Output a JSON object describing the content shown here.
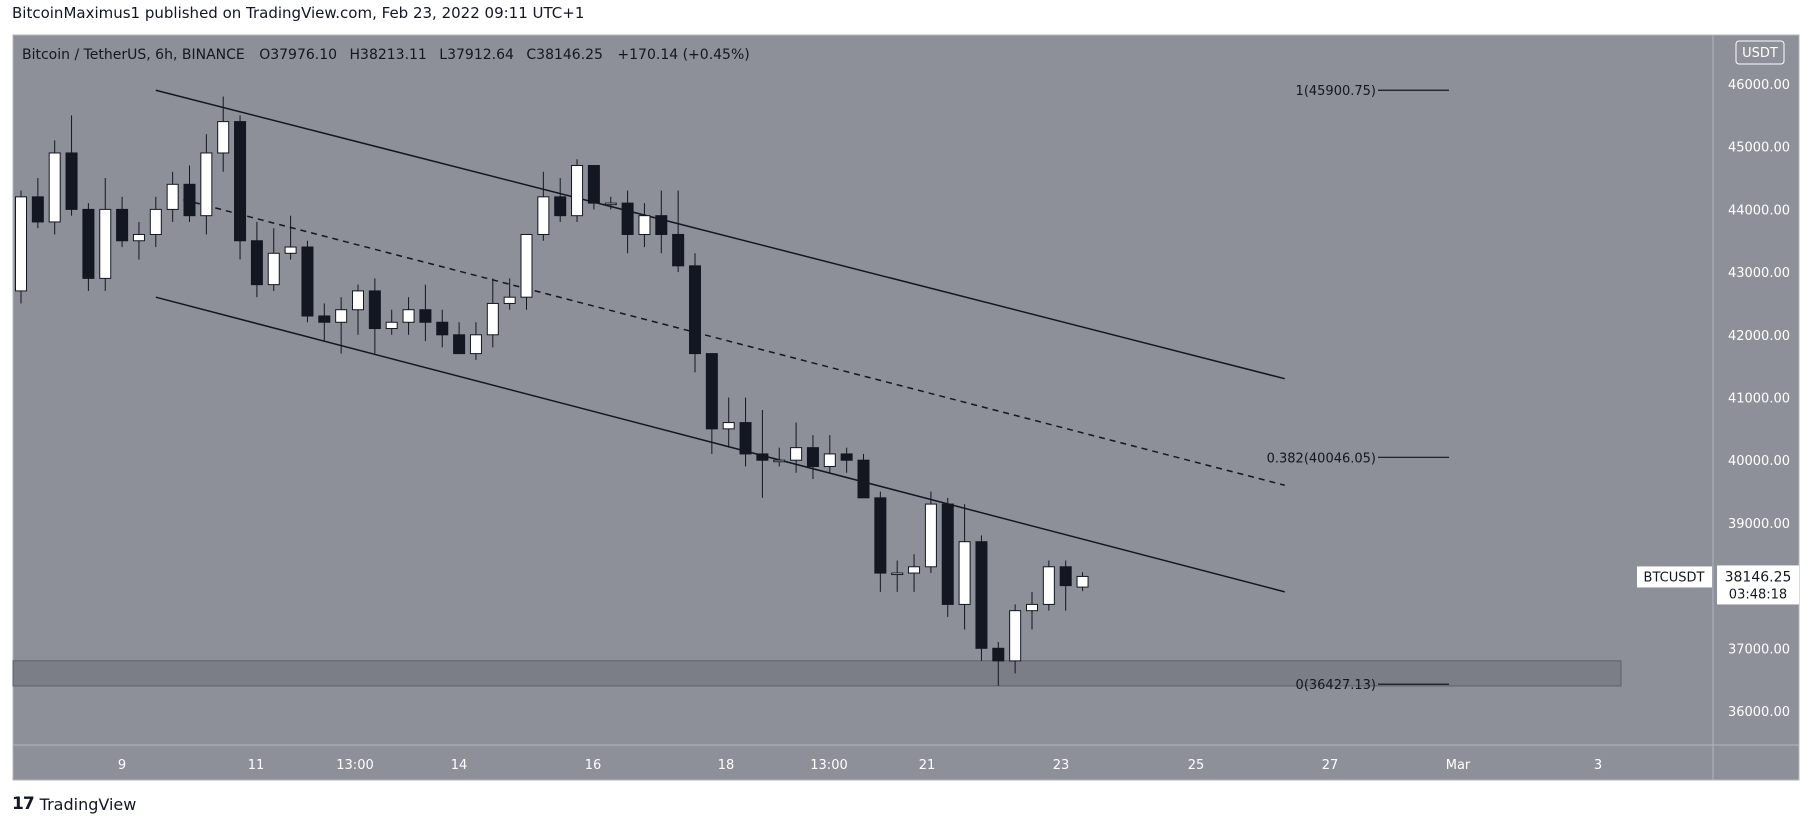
{
  "header": {
    "text": "BitcoinMaximus1 published on TradingView.com, Feb 23, 2022 09:11 UTC+1"
  },
  "footer": {
    "logo_mark": "17",
    "brand": "TradingView"
  },
  "legend": {
    "symbol": "Bitcoin / TetherUS, 6h, BINANCE",
    "o_label": "O",
    "o_value": "37976.10",
    "h_label": "H",
    "h_value": "38213.11",
    "l_label": "L",
    "l_value": "37912.64",
    "c_label": "C",
    "c_value": "38146.25",
    "change": "+170.14 (+0.45%)"
  },
  "currency_badge": "USDT",
  "price_tag": {
    "symbol": "BTCUSDT",
    "price": "38146.25",
    "countdown": "03:48:18"
  },
  "colors": {
    "background": "#8d8f99",
    "up_body": "#ffffff",
    "down_body": "#131722",
    "line": "#131722",
    "zone_fill": "#7c7e87",
    "axis_bg": "#8d8f99"
  },
  "chart_data": {
    "type": "candlestick",
    "title": "Bitcoin / TetherUS, 6h, BINANCE",
    "ylim": [
      35500,
      46500
    ],
    "yticks": [
      "46000.00",
      "45000.00",
      "44000.00",
      "43000.00",
      "42000.00",
      "41000.00",
      "40000.00",
      "39000.00",
      "38000.00",
      "37000.00",
      "36000.00"
    ],
    "xticks": [
      "9",
      "11",
      "13:00",
      "14",
      "16",
      "18",
      "13:00",
      "21",
      "23",
      "25",
      "27",
      "Mar",
      "3"
    ],
    "x_unit": "6h candle index",
    "candles": [
      {
        "o": 42700,
        "h": 44300,
        "l": 42500,
        "c": 44200
      },
      {
        "o": 44200,
        "h": 44500,
        "l": 43700,
        "c": 43800
      },
      {
        "o": 43800,
        "h": 45100,
        "l": 43600,
        "c": 44900
      },
      {
        "o": 44900,
        "h": 45500,
        "l": 43900,
        "c": 44000
      },
      {
        "o": 44000,
        "h": 44100,
        "l": 42700,
        "c": 42900
      },
      {
        "o": 42900,
        "h": 44500,
        "l": 42700,
        "c": 44000
      },
      {
        "o": 44000,
        "h": 44200,
        "l": 43400,
        "c": 43500
      },
      {
        "o": 43500,
        "h": 43800,
        "l": 43200,
        "c": 43600
      },
      {
        "o": 43600,
        "h": 44200,
        "l": 43400,
        "c": 44000
      },
      {
        "o": 44000,
        "h": 44600,
        "l": 43800,
        "c": 44400
      },
      {
        "o": 44400,
        "h": 44700,
        "l": 43800,
        "c": 43900
      },
      {
        "o": 43900,
        "h": 45200,
        "l": 43600,
        "c": 44900
      },
      {
        "o": 44900,
        "h": 45800,
        "l": 44600,
        "c": 45400
      },
      {
        "o": 45400,
        "h": 45500,
        "l": 43200,
        "c": 43500
      },
      {
        "o": 43500,
        "h": 43800,
        "l": 42600,
        "c": 42800
      },
      {
        "o": 42800,
        "h": 43700,
        "l": 42700,
        "c": 43300
      },
      {
        "o": 43300,
        "h": 43900,
        "l": 43200,
        "c": 43400
      },
      {
        "o": 43400,
        "h": 43500,
        "l": 42200,
        "c": 42300
      },
      {
        "o": 42300,
        "h": 42500,
        "l": 41900,
        "c": 42200
      },
      {
        "o": 42200,
        "h": 42600,
        "l": 41700,
        "c": 42400
      },
      {
        "o": 42400,
        "h": 42800,
        "l": 42000,
        "c": 42700
      },
      {
        "o": 42700,
        "h": 42900,
        "l": 41700,
        "c": 42100
      },
      {
        "o": 42100,
        "h": 42400,
        "l": 42000,
        "c": 42200
      },
      {
        "o": 42200,
        "h": 42600,
        "l": 42000,
        "c": 42400
      },
      {
        "o": 42400,
        "h": 42800,
        "l": 41900,
        "c": 42200
      },
      {
        "o": 42200,
        "h": 42400,
        "l": 41800,
        "c": 42000
      },
      {
        "o": 42000,
        "h": 42200,
        "l": 41700,
        "c": 41700
      },
      {
        "o": 41700,
        "h": 42200,
        "l": 41600,
        "c": 42000
      },
      {
        "o": 42000,
        "h": 42900,
        "l": 41800,
        "c": 42500
      },
      {
        "o": 42500,
        "h": 42900,
        "l": 42400,
        "c": 42600
      },
      {
        "o": 42600,
        "h": 43600,
        "l": 42400,
        "c": 43600
      },
      {
        "o": 43600,
        "h": 44600,
        "l": 43500,
        "c": 44200
      },
      {
        "o": 44200,
        "h": 44500,
        "l": 43800,
        "c": 43900
      },
      {
        "o": 43900,
        "h": 44800,
        "l": 43800,
        "c": 44700
      },
      {
        "o": 44700,
        "h": 44700,
        "l": 44000,
        "c": 44100
      },
      {
        "o": 44100,
        "h": 44200,
        "l": 44000,
        "c": 44100
      },
      {
        "o": 44100,
        "h": 44300,
        "l": 43300,
        "c": 43600
      },
      {
        "o": 43600,
        "h": 44100,
        "l": 43400,
        "c": 43900
      },
      {
        "o": 43900,
        "h": 44300,
        "l": 43300,
        "c": 43600
      },
      {
        "o": 43600,
        "h": 44300,
        "l": 43000,
        "c": 43100
      },
      {
        "o": 43100,
        "h": 43300,
        "l": 41400,
        "c": 41700
      },
      {
        "o": 41700,
        "h": 41700,
        "l": 40100,
        "c": 40500
      },
      {
        "o": 40500,
        "h": 41000,
        "l": 40200,
        "c": 40600
      },
      {
        "o": 40600,
        "h": 41000,
        "l": 39900,
        "c": 40100
      },
      {
        "o": 40100,
        "h": 40800,
        "l": 39400,
        "c": 40000
      },
      {
        "o": 40000,
        "h": 40200,
        "l": 39900,
        "c": 40000
      },
      {
        "o": 40000,
        "h": 40600,
        "l": 39800,
        "c": 40200
      },
      {
        "o": 40200,
        "h": 40400,
        "l": 39700,
        "c": 39900
      },
      {
        "o": 39900,
        "h": 40400,
        "l": 39800,
        "c": 40100
      },
      {
        "o": 40100,
        "h": 40200,
        "l": 39800,
        "c": 40000
      },
      {
        "o": 40000,
        "h": 40100,
        "l": 39400,
        "c": 39400
      },
      {
        "o": 39400,
        "h": 39500,
        "l": 37900,
        "c": 38200
      },
      {
        "o": 38200,
        "h": 38400,
        "l": 37900,
        "c": 38200
      },
      {
        "o": 38200,
        "h": 38500,
        "l": 37900,
        "c": 38300
      },
      {
        "o": 38300,
        "h": 39500,
        "l": 38200,
        "c": 39300
      },
      {
        "o": 39300,
        "h": 39400,
        "l": 37500,
        "c": 37700
      },
      {
        "o": 37700,
        "h": 39300,
        "l": 37300,
        "c": 38700
      },
      {
        "o": 38700,
        "h": 38800,
        "l": 36800,
        "c": 37000
      },
      {
        "o": 37000,
        "h": 37100,
        "l": 36400,
        "c": 36800
      },
      {
        "o": 36800,
        "h": 37700,
        "l": 36600,
        "c": 37600
      },
      {
        "o": 37600,
        "h": 37900,
        "l": 37300,
        "c": 37700
      },
      {
        "o": 37700,
        "h": 38400,
        "l": 37600,
        "c": 38300
      },
      {
        "o": 38300,
        "h": 38400,
        "l": 37600,
        "c": 38000
      },
      {
        "o": 37976.1,
        "h": 38213.11,
        "l": 37912.64,
        "c": 38146.25
      }
    ],
    "channel_upper": [
      [
        8,
        45900
      ],
      [
        75,
        41300
      ]
    ],
    "channel_lower": [
      [
        8,
        42600
      ],
      [
        75,
        37900
      ]
    ],
    "channel_mid": [
      [
        9,
        44200
      ],
      [
        75,
        39600
      ]
    ],
    "support_zone": {
      "from": 36400,
      "to": 36800
    },
    "fib_levels": [
      {
        "label": "1(45900.75)",
        "price": 45900.75
      },
      {
        "label": "0.382(40046.05)",
        "price": 40046.05
      },
      {
        "label": "0(36427.13)",
        "price": 36427.13
      }
    ],
    "grid": false,
    "last_price": 38146.25
  }
}
